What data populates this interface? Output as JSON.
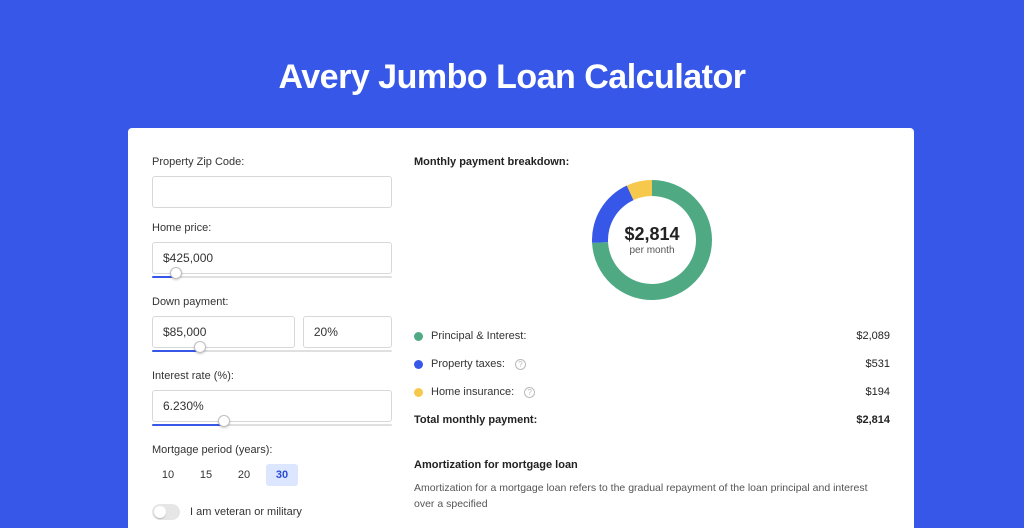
{
  "page": {
    "title": "Avery Jumbo Loan Calculator",
    "bg_color": "#3757e8"
  },
  "form": {
    "zip": {
      "label": "Property Zip Code:",
      "value": ""
    },
    "home_price": {
      "label": "Home price:",
      "value": "$425,000",
      "slider_pct": 10
    },
    "down_payment": {
      "label": "Down payment:",
      "value": "$85,000",
      "pct_value": "20%",
      "slider_pct": 20
    },
    "interest_rate": {
      "label": "Interest rate (%):",
      "value": "6.230%",
      "slider_pct": 30
    },
    "mortgage_period": {
      "label": "Mortgage period (years):",
      "options": [
        "10",
        "15",
        "20",
        "30"
      ],
      "selected": "30"
    },
    "veteran": {
      "label": "I am veteran or military",
      "on": false
    }
  },
  "chart": {
    "title": "Monthly payment breakdown:",
    "type": "donut",
    "center_amount": "$2,814",
    "center_sub": "per month",
    "radius": 60,
    "thickness": 16,
    "background_color": "#ffffff",
    "slices": [
      {
        "label": "Principal & Interest:",
        "value": "$2,089",
        "num": 2089,
        "color": "#4faa84",
        "has_info": false
      },
      {
        "label": "Property taxes:",
        "value": "$531",
        "num": 531,
        "color": "#3757e8",
        "has_info": true
      },
      {
        "label": "Home insurance:",
        "value": "$194",
        "num": 194,
        "color": "#f6c84c",
        "has_info": true
      }
    ],
    "total_label": "Total monthly payment:",
    "total_value": "$2,814"
  },
  "amortization": {
    "title": "Amortization for mortgage loan",
    "text": "Amortization for a mortgage loan refers to the gradual repayment of the loan principal and interest over a specified"
  }
}
